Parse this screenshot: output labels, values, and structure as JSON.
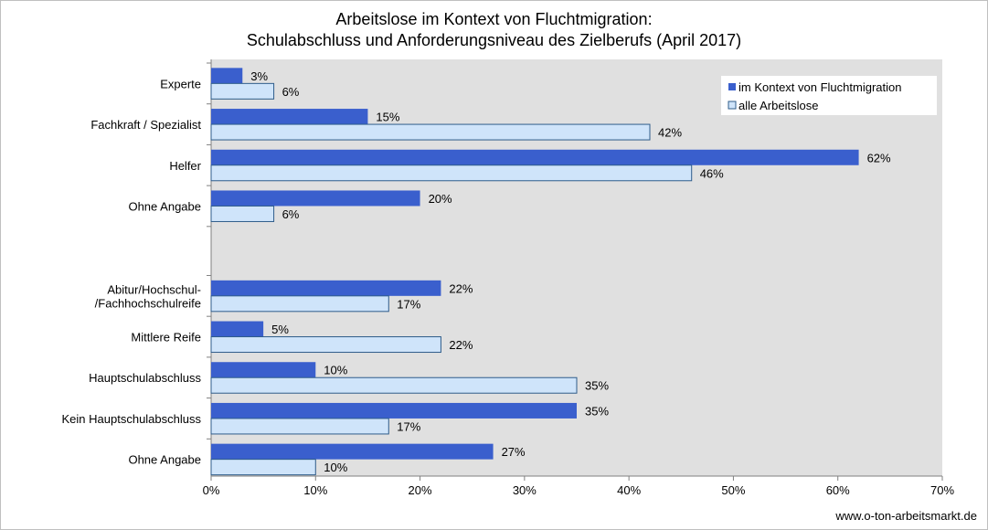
{
  "chart_data": {
    "type": "bar",
    "orientation": "horizontal",
    "title": "Arbeitslose im Kontext von Fluchtmigration:",
    "subtitle": "Schulabschluss und Anforderungsniveau des Zielberufs (April 2017)",
    "categories": [
      "Experte",
      "Fachkraft / Spezialist",
      "Helfer",
      "Ohne Angabe",
      "",
      "Abitur/Hochschul-\n/Fachhochschulreife",
      "Mittlere Reife",
      "Hauptschulabschluss",
      "Kein Hauptschulabschluss",
      "Ohne Angabe"
    ],
    "series": [
      {
        "name": "im Kontext von Fluchtmigration",
        "color": "#3a5fcd",
        "values": [
          3,
          15,
          62,
          20,
          null,
          22,
          5,
          10,
          35,
          27
        ]
      },
      {
        "name": "alle Arbeitslose",
        "color": "#cfe4fa",
        "values": [
          6,
          42,
          46,
          6,
          null,
          17,
          22,
          35,
          17,
          10
        ]
      }
    ],
    "value_suffix": "%",
    "xlim": [
      0,
      70
    ],
    "xticks": [
      0,
      10,
      20,
      30,
      40,
      50,
      60,
      70
    ],
    "xtick_labels": [
      "0%",
      "10%",
      "20%",
      "30%",
      "40%",
      "50%",
      "60%",
      "70%"
    ],
    "grid": false,
    "legend_position": "top-right",
    "plot_background": "#e0e0e0"
  },
  "footer": {
    "source": "www.o-ton-arbeitsmarkt.de"
  }
}
